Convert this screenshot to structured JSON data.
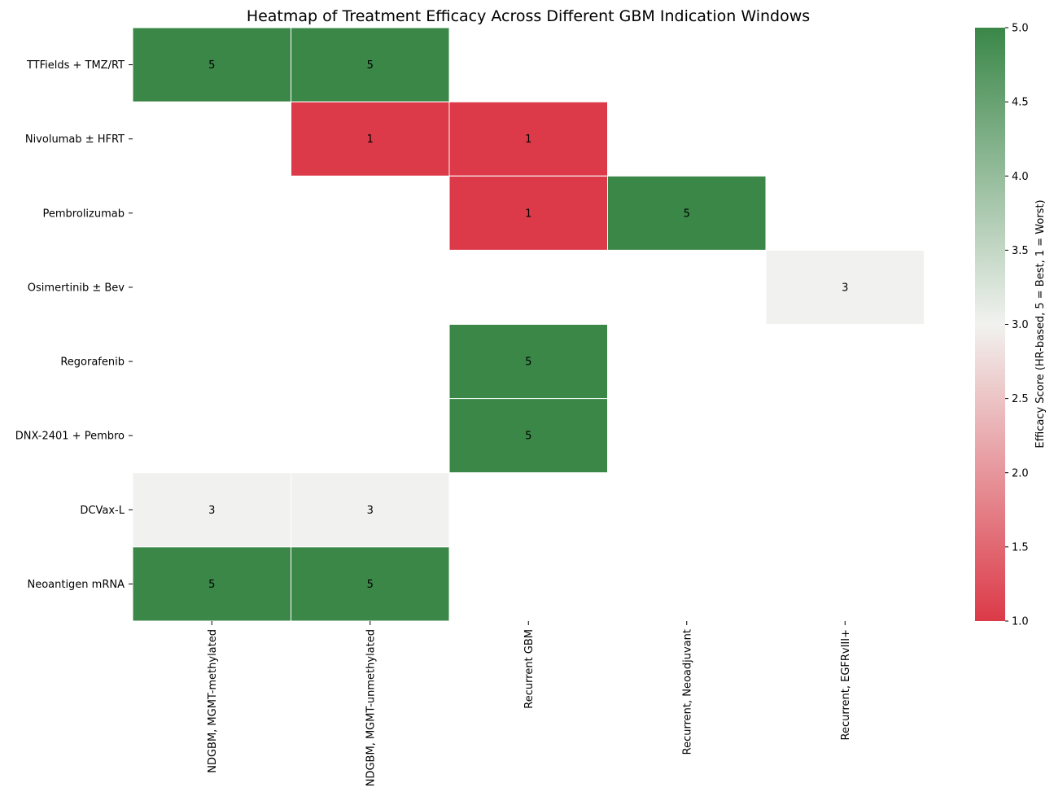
{
  "chart_data": {
    "type": "heatmap",
    "title": "Heatmap of Treatment Efficacy Across Different GBM Indication Windows",
    "rows": [
      "TTFields + TMZ/RT",
      "Nivolumab ± HFRT",
      "Pembrolizumab",
      "Osimertinib ± Bev",
      "Regorafenib",
      "DNX-2401 + Pembro",
      "DCVax-L",
      "Neoantigen mRNA"
    ],
    "columns": [
      "NDGBM, MGMT-methylated",
      "NDGBM, MGMT-unmethylated",
      "Recurrent GBM",
      "Recurrent, Neoadjuvant",
      "Recurrent, EGFRvIII+"
    ],
    "values": [
      [
        5,
        5,
        null,
        null,
        null
      ],
      [
        null,
        1,
        1,
        null,
        null
      ],
      [
        null,
        null,
        1,
        5,
        null
      ],
      [
        null,
        null,
        null,
        null,
        3
      ],
      [
        null,
        null,
        5,
        null,
        null
      ],
      [
        null,
        null,
        5,
        null,
        null
      ],
      [
        3,
        3,
        null,
        null,
        null
      ],
      [
        5,
        5,
        null,
        null,
        null
      ]
    ],
    "colorbar": {
      "label": "Efficacy Score (HR-based, 5 = Best, 1 = Worst)",
      "min": 1.0,
      "max": 5.0,
      "ticks": [
        "1.0",
        "1.5",
        "2.0",
        "2.5",
        "3.0",
        "3.5",
        "4.0",
        "4.5",
        "5.0"
      ],
      "colors": {
        "low": "#dc3a48",
        "mid": "#f1f2ef",
        "high": "#3a8748"
      }
    },
    "annotations": true,
    "grid": false
  }
}
